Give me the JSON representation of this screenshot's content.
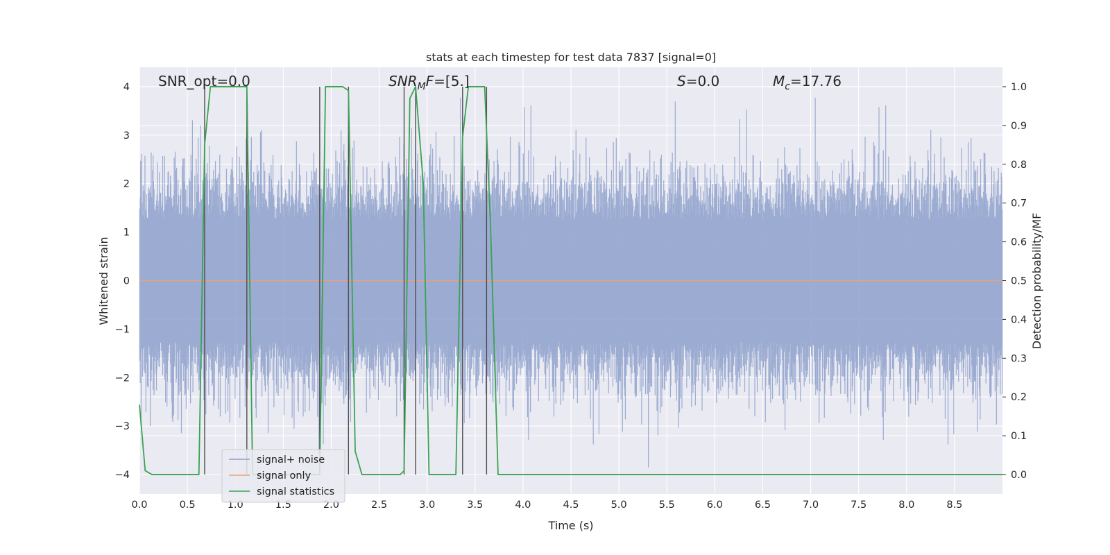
{
  "chart_data": {
    "type": "line",
    "title": "stats at each timestep for test data 7837 [signal=0]",
    "xlabel": "Time (s)",
    "ylabel_left": "Whitened strain",
    "ylabel_right": "Detection probability/MF",
    "xlim": [
      0.0,
      9.0
    ],
    "ylim_left": [
      -4.4,
      4.4
    ],
    "ylim_right": [
      -0.05,
      1.05
    ],
    "x_ticks": [
      "0.0",
      "0.5",
      "1.0",
      "1.5",
      "2.0",
      "2.5",
      "3.0",
      "3.5",
      "4.0",
      "4.5",
      "5.0",
      "5.5",
      "6.0",
      "6.5",
      "7.0",
      "7.5",
      "8.0",
      "8.5"
    ],
    "y_ticks_left": [
      "−4",
      "−3",
      "−2",
      "−1",
      "0",
      "1",
      "2",
      "3",
      "4"
    ],
    "y_ticks_right": [
      "0.0",
      "0.1",
      "0.2",
      "0.3",
      "0.4",
      "0.5",
      "0.6",
      "0.7",
      "0.8",
      "0.9",
      "1.0"
    ],
    "annotations": {
      "snr_opt": "SNR_opt=0.0",
      "snr_mf_base": "SNR",
      "snr_mf_sub": "M",
      "snr_mf_rest": "F=[5.]",
      "s_label": "S",
      "s_rest": "=0.0",
      "mc_base": "M",
      "mc_sub": "c",
      "mc_rest": "=17.76"
    },
    "legend": {
      "placement": "lower-left",
      "entries": [
        {
          "label": "signal+ noise",
          "color": "#8da0cb"
        },
        {
          "label": "signal only",
          "color": "#e8a07f"
        },
        {
          "label": "signal statistics",
          "color": "#3aa351"
        }
      ]
    },
    "series": [
      {
        "name": "signal+ noise",
        "axis": "left",
        "kind": "noise",
        "time_range": [
          0.0,
          9.0
        ],
        "typical_amplitude": 2.3,
        "peak_amplitude": 3.9,
        "color": "#8da0cb"
      },
      {
        "name": "signal only",
        "axis": "left",
        "x": [
          0.0,
          9.0
        ],
        "y": [
          0.0,
          0.0
        ],
        "color": "#e8a07f"
      },
      {
        "name": "signal statistics",
        "axis": "right",
        "x": [
          0.0,
          0.06,
          0.13,
          0.62,
          0.68,
          0.74,
          1.12,
          1.18,
          1.88,
          1.94,
          2.12,
          2.18,
          2.25,
          2.32,
          2.72,
          2.76,
          2.82,
          2.88,
          2.96,
          3.02,
          3.3,
          3.37,
          3.43,
          3.6,
          3.66,
          3.74,
          4.5,
          5.0,
          6.0,
          7.0,
          7.3,
          7.5,
          8.0,
          8.5,
          9.0
        ],
        "y": [
          0.18,
          0.01,
          0.0,
          0.0,
          0.85,
          1.0,
          1.0,
          0.0,
          0.0,
          1.0,
          1.0,
          0.99,
          0.06,
          0.0,
          0.0,
          0.01,
          0.97,
          1.0,
          0.75,
          0.0,
          0.0,
          0.87,
          1.0,
          1.0,
          0.65,
          0.0,
          0.0,
          0.0,
          0.0,
          0.0,
          0.0,
          0.0,
          0.0,
          0.0,
          0.0
        ],
        "color": "#3aa351"
      }
    ],
    "vertical_lines": {
      "axis": "left",
      "y_range": [
        -4.0,
        4.0
      ],
      "x": [
        0.68,
        1.12,
        1.88,
        2.18,
        2.76,
        2.88,
        3.37,
        3.62
      ],
      "color": "#4d4d4d"
    }
  }
}
